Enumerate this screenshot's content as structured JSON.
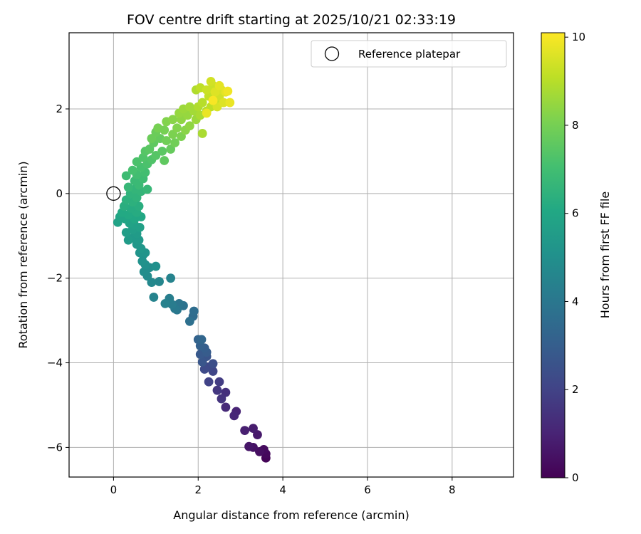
{
  "chart_data": {
    "type": "scatter",
    "title": "FOV centre drift starting at 2025/10/21 02:33:19",
    "xlabel": "Angular distance from reference (arcmin)",
    "ylabel": "Rotation from reference (arcmin)",
    "xlim": [
      -1.05,
      9.45
    ],
    "ylim": [
      -6.7,
      3.8
    ],
    "xticks": [
      0,
      2,
      4,
      6,
      8
    ],
    "yticks": [
      -6,
      -4,
      -2,
      0,
      2
    ],
    "xtick_labels": [
      "0",
      "2",
      "4",
      "6",
      "8"
    ],
    "ytick_labels": [
      "−6",
      "−4",
      "−2",
      "0",
      "2"
    ],
    "grid": true,
    "legend": {
      "position": "top-right",
      "entries": [
        "Reference platepar"
      ]
    },
    "reference_point": {
      "x": 0,
      "y": 0,
      "label": "Reference platepar"
    },
    "colorbar": {
      "label": "Hours from first FF file",
      "range": [
        0,
        10.1
      ],
      "ticks": [
        0,
        2,
        4,
        6,
        8,
        10
      ],
      "tick_labels": [
        "0",
        "2",
        "4",
        "6",
        "8",
        "10"
      ],
      "colormap": "viridis"
    },
    "series": [
      {
        "name": "FOV drift",
        "points": [
          [
            3.6,
            -6.25,
            0.1
          ],
          [
            3.6,
            -6.15,
            0.2
          ],
          [
            3.55,
            -6.05,
            0.3
          ],
          [
            3.45,
            -6.1,
            0.4
          ],
          [
            3.3,
            -6.0,
            0.5
          ],
          [
            3.2,
            -5.98,
            0.6
          ],
          [
            3.4,
            -5.7,
            0.7
          ],
          [
            3.3,
            -5.55,
            0.8
          ],
          [
            3.1,
            -5.6,
            0.9
          ],
          [
            2.9,
            -5.15,
            1.0
          ],
          [
            2.85,
            -5.25,
            1.1
          ],
          [
            2.65,
            -5.05,
            1.2
          ],
          [
            2.65,
            -4.7,
            1.4
          ],
          [
            2.55,
            -4.85,
            1.5
          ],
          [
            2.45,
            -4.65,
            1.6
          ],
          [
            2.5,
            -4.45,
            1.8
          ],
          [
            2.25,
            -4.45,
            2.0
          ],
          [
            2.35,
            -4.2,
            2.1
          ],
          [
            2.25,
            -4.1,
            2.2
          ],
          [
            2.15,
            -4.15,
            2.3
          ],
          [
            2.35,
            -4.02,
            2.4
          ],
          [
            2.2,
            -3.85,
            2.6
          ],
          [
            2.1,
            -3.98,
            2.7
          ],
          [
            2.05,
            -3.8,
            2.8
          ],
          [
            2.2,
            -3.75,
            2.9
          ],
          [
            2.15,
            -3.65,
            3.0
          ],
          [
            2.05,
            -3.6,
            3.1
          ],
          [
            2.0,
            -3.45,
            3.2
          ],
          [
            2.08,
            -3.45,
            3.3
          ],
          [
            1.88,
            -2.9,
            3.5
          ],
          [
            1.9,
            -2.78,
            3.6
          ],
          [
            1.8,
            -3.02,
            3.7
          ],
          [
            1.65,
            -2.65,
            3.8
          ],
          [
            1.55,
            -2.6,
            3.9
          ],
          [
            1.5,
            -2.75,
            4.0
          ],
          [
            1.45,
            -2.72,
            4.1
          ],
          [
            1.38,
            -2.62,
            4.2
          ],
          [
            1.32,
            -2.48,
            4.3
          ],
          [
            1.22,
            -2.6,
            4.4
          ],
          [
            1.35,
            -2.0,
            4.5
          ],
          [
            0.95,
            -2.45,
            4.5
          ],
          [
            1.08,
            -2.08,
            4.6
          ],
          [
            0.9,
            -2.1,
            4.7
          ],
          [
            0.8,
            -1.95,
            4.8
          ],
          [
            0.72,
            -1.85,
            4.9
          ],
          [
            0.85,
            -1.75,
            4.9
          ],
          [
            1.0,
            -1.72,
            5.0
          ],
          [
            0.75,
            -1.68,
            5.0
          ],
          [
            0.68,
            -1.6,
            5.1
          ],
          [
            0.7,
            -1.45,
            5.1
          ],
          [
            0.62,
            -1.4,
            5.2
          ],
          [
            0.75,
            -1.4,
            5.2
          ],
          [
            0.65,
            -1.3,
            5.3
          ],
          [
            0.55,
            -1.2,
            5.3
          ],
          [
            0.6,
            -1.1,
            5.4
          ],
          [
            0.45,
            -1.05,
            5.4
          ],
          [
            0.35,
            -1.1,
            5.5
          ],
          [
            0.55,
            -0.95,
            5.5
          ],
          [
            0.3,
            -0.92,
            5.6
          ],
          [
            0.45,
            -0.85,
            5.6
          ],
          [
            0.62,
            -0.8,
            5.7
          ],
          [
            0.5,
            -0.75,
            5.7
          ],
          [
            0.38,
            -0.7,
            5.8
          ],
          [
            0.1,
            -0.68,
            5.8
          ],
          [
            0.15,
            -0.55,
            5.9
          ],
          [
            0.28,
            -0.6,
            5.9
          ],
          [
            0.5,
            -0.6,
            6.0
          ],
          [
            0.65,
            -0.55,
            6.0
          ],
          [
            0.35,
            -0.5,
            6.1
          ],
          [
            0.2,
            -0.45,
            6.1
          ],
          [
            0.55,
            -0.45,
            6.2
          ],
          [
            0.4,
            -0.35,
            6.2
          ],
          [
            0.25,
            -0.3,
            6.3
          ],
          [
            0.6,
            -0.3,
            6.3
          ],
          [
            0.45,
            -0.2,
            6.4
          ],
          [
            0.3,
            -0.15,
            6.4
          ],
          [
            0.55,
            -0.1,
            6.5
          ],
          [
            0.4,
            0.0,
            6.5
          ],
          [
            0.65,
            0.05,
            6.6
          ],
          [
            0.5,
            0.1,
            6.6
          ],
          [
            0.8,
            0.1,
            6.7
          ],
          [
            0.35,
            0.15,
            6.7
          ],
          [
            0.6,
            0.2,
            6.8
          ],
          [
            0.5,
            0.3,
            6.8
          ],
          [
            0.7,
            0.35,
            6.9
          ],
          [
            0.3,
            0.42,
            6.9
          ],
          [
            0.55,
            0.45,
            7.0
          ],
          [
            0.75,
            0.5,
            7.0
          ],
          [
            0.45,
            0.55,
            7.1
          ],
          [
            0.65,
            0.62,
            7.1
          ],
          [
            0.55,
            0.75,
            7.2
          ],
          [
            0.8,
            0.7,
            7.2
          ],
          [
            0.7,
            0.85,
            7.3
          ],
          [
            0.9,
            0.8,
            7.3
          ],
          [
            0.75,
            1.0,
            7.4
          ],
          [
            1.0,
            0.9,
            7.4
          ],
          [
            0.85,
            1.05,
            7.5
          ],
          [
            1.15,
            1.0,
            7.5
          ],
          [
            1.2,
            0.78,
            7.6
          ],
          [
            0.95,
            1.2,
            7.6
          ],
          [
            1.1,
            1.3,
            7.7
          ],
          [
            1.35,
            1.05,
            7.7
          ],
          [
            0.9,
            1.3,
            7.8
          ],
          [
            1.0,
            1.45,
            7.8
          ],
          [
            1.25,
            1.25,
            7.9
          ],
          [
            1.45,
            1.2,
            7.9
          ],
          [
            1.05,
            1.55,
            8.0
          ],
          [
            1.2,
            1.5,
            8.0
          ],
          [
            1.4,
            1.4,
            8.1
          ],
          [
            1.6,
            1.35,
            8.1
          ],
          [
            1.25,
            1.7,
            8.2
          ],
          [
            1.5,
            1.55,
            8.2
          ],
          [
            1.7,
            1.5,
            8.3
          ],
          [
            1.4,
            1.75,
            8.3
          ],
          [
            1.6,
            1.75,
            8.4
          ],
          [
            1.8,
            1.6,
            8.4
          ],
          [
            1.55,
            1.9,
            8.5
          ],
          [
            1.75,
            1.85,
            8.5
          ],
          [
            1.65,
            2.0,
            8.6
          ],
          [
            1.95,
            1.75,
            8.6
          ],
          [
            1.9,
            1.95,
            8.7
          ],
          [
            1.8,
            2.05,
            8.7
          ],
          [
            2.05,
            1.85,
            8.8
          ],
          [
            2.1,
            1.42,
            8.8
          ],
          [
            2.0,
            2.05,
            8.9
          ],
          [
            1.95,
            2.45,
            8.9
          ],
          [
            2.2,
            1.95,
            9.0
          ],
          [
            2.1,
            2.15,
            9.0
          ],
          [
            2.3,
            2.05,
            9.1
          ],
          [
            2.05,
            2.5,
            9.1
          ],
          [
            2.25,
            2.3,
            9.2
          ],
          [
            2.4,
            2.15,
            9.2
          ],
          [
            2.2,
            2.45,
            9.3
          ],
          [
            2.35,
            2.55,
            9.3
          ],
          [
            2.5,
            2.3,
            9.4
          ],
          [
            2.3,
            2.65,
            9.4
          ],
          [
            2.45,
            2.05,
            9.5
          ],
          [
            2.55,
            2.45,
            9.5
          ],
          [
            2.4,
            2.4,
            9.6
          ],
          [
            2.6,
            2.15,
            9.6
          ],
          [
            2.65,
            2.4,
            9.7
          ],
          [
            2.5,
            2.55,
            9.7
          ],
          [
            2.2,
            1.9,
            9.8
          ],
          [
            2.75,
            2.15,
            9.8
          ],
          [
            2.7,
            2.42,
            9.9
          ],
          [
            2.35,
            2.2,
            10.0
          ]
        ]
      }
    ]
  }
}
